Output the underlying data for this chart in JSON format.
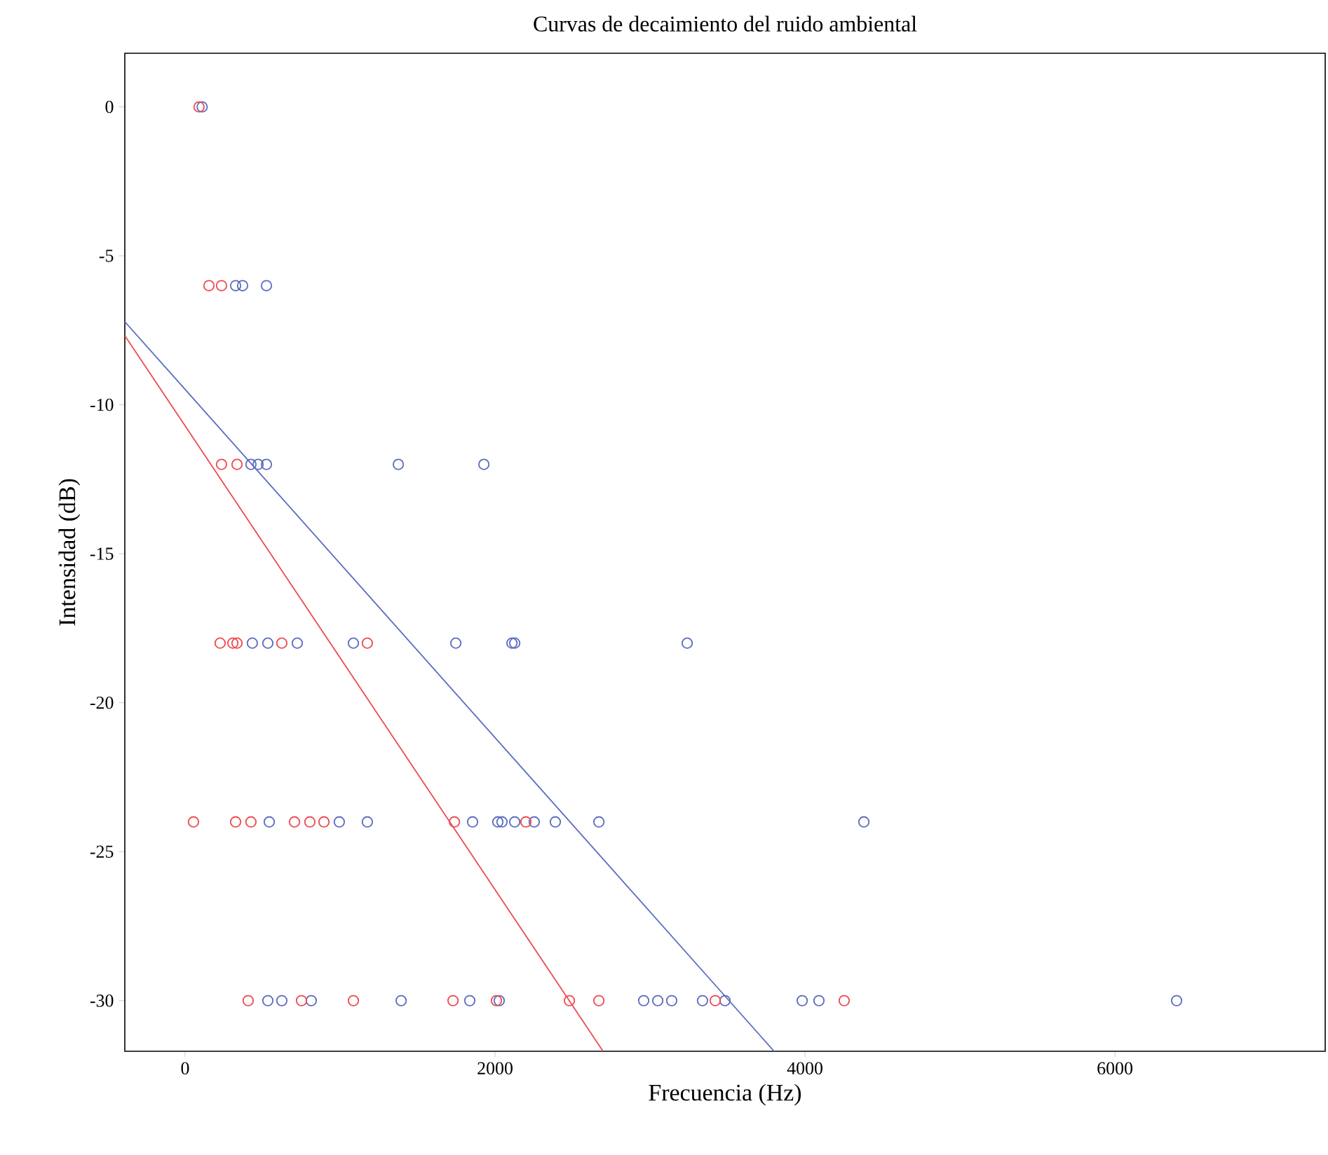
{
  "chart_data": {
    "type": "scatter",
    "title": "Curvas de decaimiento del ruido ambiental",
    "xlabel": "Frecuencia (Hz)",
    "ylabel": "Intensidad (dB)",
    "xlim": [
      -389,
      7357
    ],
    "ylim": [
      -31.7,
      1.8
    ],
    "xticks": [
      0,
      2000,
      4000,
      6000
    ],
    "yticks": [
      0,
      -5,
      -10,
      -15,
      -20,
      -25,
      -30
    ],
    "marker": "circle",
    "grid": false,
    "series": [
      {
        "color": "#5b6cc0",
        "x": [
          110,
          326,
          371,
          525,
          425,
          471,
          525,
          1376,
          1928,
          434,
          534,
          724,
          1086,
          1747,
          2109,
          2127,
          3240,
          543,
          995,
          1176,
          1855,
          2018,
          2045,
          2127,
          2253,
          2389,
          2670,
          4380,
          534,
          624,
          814,
          1394,
          1837,
          2027,
          2959,
          3050,
          3140,
          3339,
          3484,
          3982,
          4090,
          6398
        ],
        "values": [
          0,
          -6,
          -6,
          -6,
          -12,
          -12,
          -12,
          -12,
          -12,
          -18,
          -18,
          -18,
          -18,
          -18,
          -18,
          -18,
          -18,
          -24,
          -24,
          -24,
          -24,
          -24,
          -24,
          -24,
          -24,
          -24,
          -24,
          -24,
          -30,
          -30,
          -30,
          -30,
          -30,
          -30,
          -30,
          -30,
          -30,
          -30,
          -30,
          -30,
          -30,
          -30
        ]
      },
      {
        "color": "#ee4a50",
        "x": [
          90,
          154,
          235,
          235,
          335,
          226,
          308,
          335,
          624,
          1176,
          54,
          326,
          425,
          706,
          805,
          896,
          1738,
          2199,
          407,
          751,
          1086,
          1729,
          2009,
          2480,
          2670,
          3421,
          4253
        ],
        "values": [
          0,
          -6,
          -6,
          -12,
          -12,
          -18,
          -18,
          -18,
          -18,
          -18,
          -24,
          -24,
          -24,
          -24,
          -24,
          -24,
          -24,
          -24,
          -30,
          -30,
          -30,
          -30,
          -30,
          -30,
          -30,
          -30,
          -30
        ]
      },
      {
        "type": "line",
        "marker": "none",
        "color": "#5b6cc0",
        "x": [
          -389,
          3801
        ],
        "values": [
          -7.21,
          -31.7
        ]
      },
      {
        "type": "line",
        "marker": "none",
        "color": "#ee4a50",
        "x": [
          -389,
          2697
        ],
        "values": [
          -7.68,
          -31.7
        ]
      }
    ]
  }
}
